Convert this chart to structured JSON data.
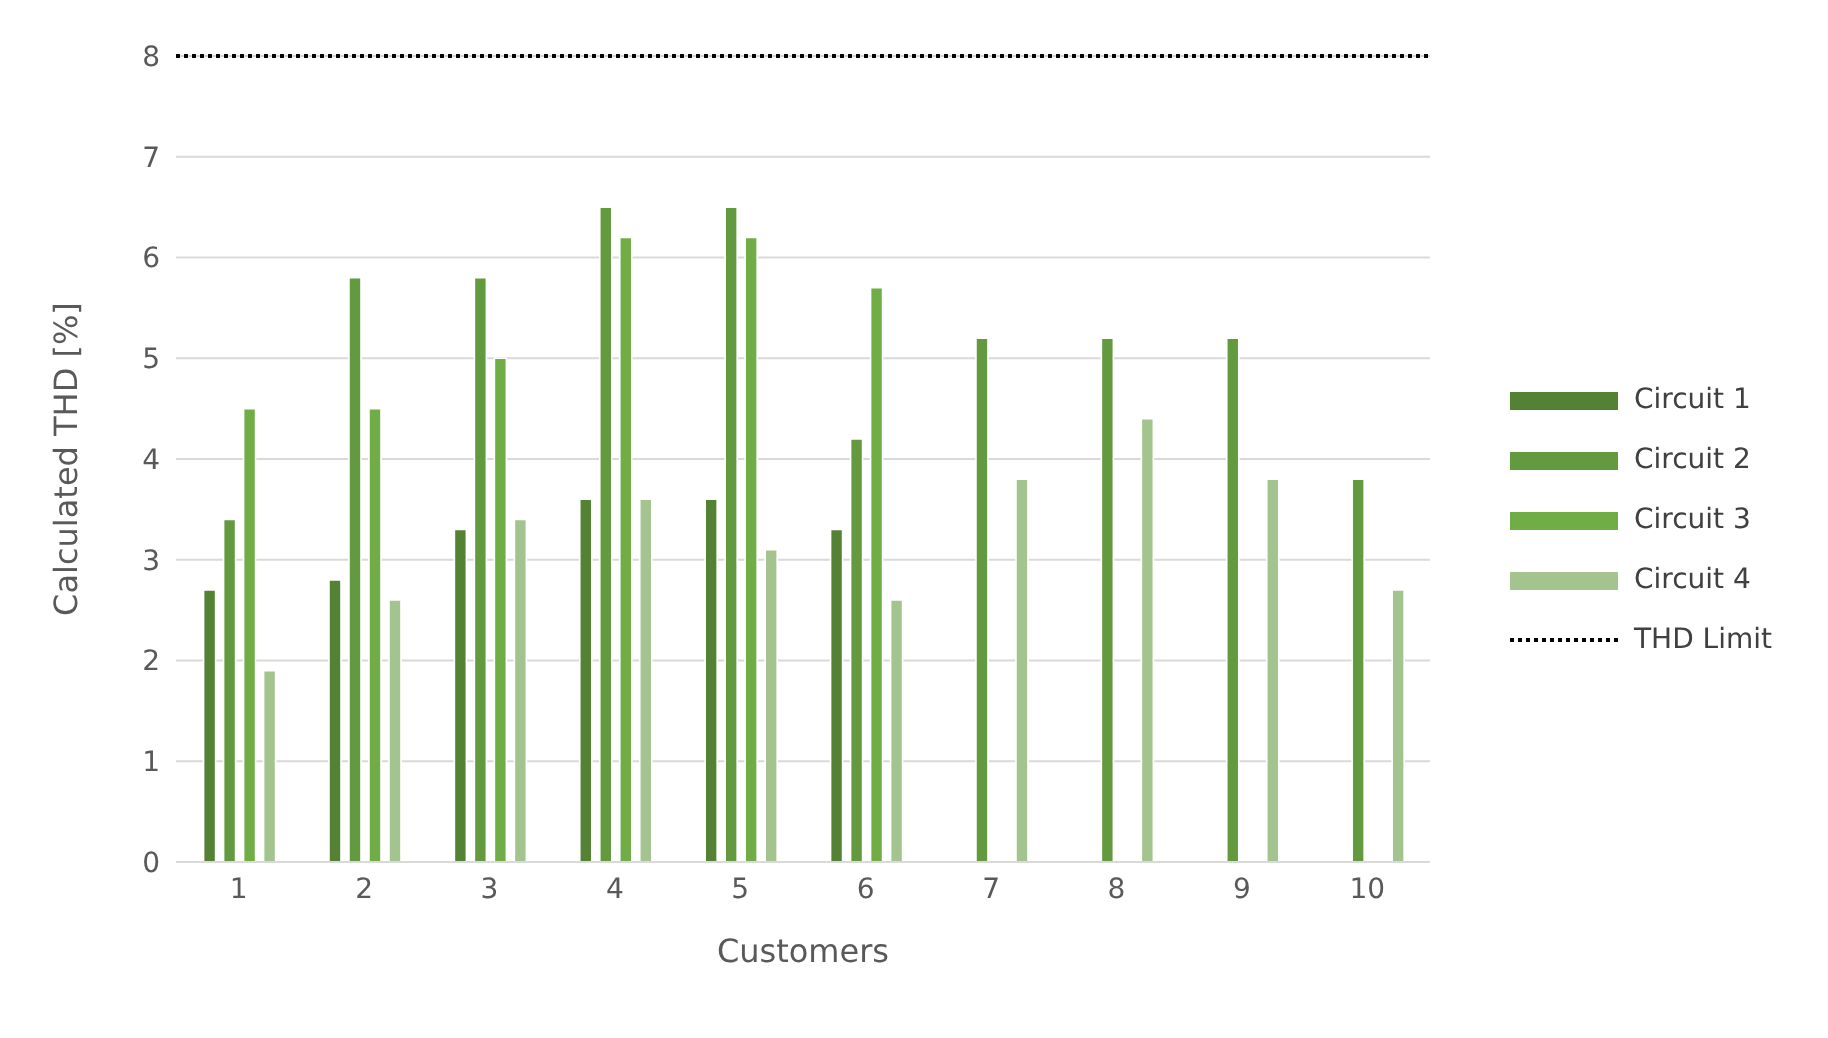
{
  "chart_data": {
    "type": "bar",
    "xlabel": "Customers",
    "ylabel": "Calculated THD [%]",
    "categories": [
      "1",
      "2",
      "3",
      "4",
      "5",
      "6",
      "7",
      "8",
      "9",
      "10"
    ],
    "series": [
      {
        "name": "Circuit 1",
        "color": "#548235",
        "values": [
          2.7,
          2.8,
          3.3,
          3.6,
          3.6,
          3.3,
          null,
          null,
          null,
          null
        ]
      },
      {
        "name": "Circuit 2",
        "color": "#639a3f",
        "values": [
          3.4,
          5.8,
          5.8,
          6.5,
          6.5,
          4.2,
          5.2,
          5.2,
          5.2,
          3.8
        ]
      },
      {
        "name": "Circuit 3",
        "color": "#70ad47",
        "values": [
          4.5,
          4.5,
          5.0,
          6.2,
          6.2,
          5.7,
          null,
          null,
          null,
          null
        ]
      },
      {
        "name": "Circuit 4",
        "color": "#a3c48e",
        "values": [
          1.9,
          2.6,
          3.4,
          3.6,
          3.1,
          2.6,
          3.8,
          4.4,
          3.8,
          2.7
        ]
      }
    ],
    "ylim": [
      0,
      8
    ],
    "yticks": [
      0,
      1,
      2,
      3,
      4,
      5,
      6,
      7,
      8
    ],
    "grid": "y",
    "legend": "right",
    "ref_lines": [
      {
        "axis": "y",
        "value": 8,
        "label": "THD Limit",
        "color": "#000000",
        "line_style": "dotted"
      }
    ]
  }
}
